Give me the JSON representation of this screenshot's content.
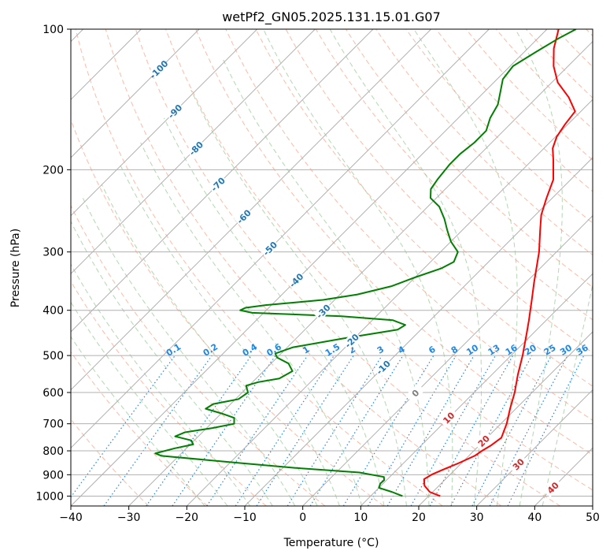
{
  "chart_data": {
    "type": "line",
    "title": "wetPf2_GN05.2025.131.15.01.G07",
    "xlabel": "Temperature (°C)",
    "ylabel": "Pressure (hPa)",
    "xlim": [
      -40,
      50
    ],
    "ylim": [
      1050,
      100
    ],
    "y_scale": "log",
    "skew": true,
    "x_ticks": [
      "−40",
      "−30",
      "−20",
      "−10",
      "0",
      "10",
      "20",
      "30",
      "40",
      "50"
    ],
    "y_ticks": [
      "100",
      "200",
      "300",
      "400",
      "500",
      "600",
      "700",
      "800",
      "900",
      "1000"
    ],
    "grid": true,
    "series": [
      {
        "color": "#ff0000",
        "points": [
          [
            1000,
            22.0
          ],
          [
            980,
            19.5
          ],
          [
            950,
            17.5
          ],
          [
            920,
            16.3
          ],
          [
            900,
            16.8
          ],
          [
            880,
            17.8
          ],
          [
            850,
            19.5
          ],
          [
            820,
            21.0
          ],
          [
            800,
            21.4
          ],
          [
            780,
            22.0
          ],
          [
            750,
            22.5
          ],
          [
            700,
            21.0
          ],
          [
            650,
            19.0
          ],
          [
            600,
            17.0
          ],
          [
            550,
            14.5
          ],
          [
            500,
            12.0
          ],
          [
            450,
            9.0
          ],
          [
            420,
            7.0
          ],
          [
            380,
            4.0
          ],
          [
            350,
            1.5
          ],
          [
            300,
            -3.0
          ],
          [
            270,
            -6.5
          ],
          [
            250,
            -9.0
          ],
          [
            230,
            -11.0
          ],
          [
            210,
            -13.0
          ],
          [
            190,
            -16.5
          ],
          [
            180,
            -18.5
          ],
          [
            170,
            -19.8
          ],
          [
            160,
            -20.5
          ],
          [
            150,
            -21.0
          ],
          [
            140,
            -24.5
          ],
          [
            130,
            -29.0
          ],
          [
            120,
            -32.5
          ],
          [
            110,
            -35.5
          ],
          [
            100,
            -38.0
          ]
        ]
      },
      {
        "color": "#008000",
        "points": [
          [
            1000,
            15.5
          ],
          [
            980,
            13.0
          ],
          [
            960,
            10.0
          ],
          [
            940,
            9.5
          ],
          [
            925,
            9.6
          ],
          [
            910,
            9.0
          ],
          [
            890,
            4.0
          ],
          [
            870,
            -8.0
          ],
          [
            850,
            -18.0
          ],
          [
            820,
            -33.0
          ],
          [
            810,
            -34.5
          ],
          [
            790,
            -32.0
          ],
          [
            775,
            -29.5
          ],
          [
            760,
            -30.5
          ],
          [
            745,
            -34.0
          ],
          [
            730,
            -33.0
          ],
          [
            715,
            -29.0
          ],
          [
            700,
            -26.0
          ],
          [
            680,
            -27.0
          ],
          [
            665,
            -30.0
          ],
          [
            650,
            -33.5
          ],
          [
            635,
            -33.0
          ],
          [
            620,
            -29.5
          ],
          [
            600,
            -29.0
          ],
          [
            580,
            -30.5
          ],
          [
            570,
            -29.0
          ],
          [
            560,
            -26.0
          ],
          [
            540,
            -25.0
          ],
          [
            520,
            -27.0
          ],
          [
            505,
            -30.0
          ],
          [
            495,
            -31.0
          ],
          [
            480,
            -29.0
          ],
          [
            460,
            -22.0
          ],
          [
            440,
            -14.0
          ],
          [
            430,
            -13.5
          ],
          [
            420,
            -16.5
          ],
          [
            412,
            -26.0
          ],
          [
            405,
            -42.0
          ],
          [
            400,
            -44.5
          ],
          [
            395,
            -44.0
          ],
          [
            390,
            -41.0
          ],
          [
            380,
            -32.0
          ],
          [
            370,
            -27.0
          ],
          [
            355,
            -22.5
          ],
          [
            340,
            -20.0
          ],
          [
            325,
            -17.0
          ],
          [
            315,
            -16.0
          ],
          [
            300,
            -17.0
          ],
          [
            285,
            -20.0
          ],
          [
            270,
            -22.5
          ],
          [
            255,
            -25.0
          ],
          [
            240,
            -28.0
          ],
          [
            230,
            -31.0
          ],
          [
            220,
            -32.5
          ],
          [
            210,
            -33.0
          ],
          [
            195,
            -33.5
          ],
          [
            185,
            -33.5
          ],
          [
            175,
            -33.0
          ],
          [
            165,
            -33.0
          ],
          [
            155,
            -34.5
          ],
          [
            145,
            -35.5
          ],
          [
            135,
            -37.5
          ],
          [
            128,
            -39.0
          ],
          [
            120,
            -39.5
          ],
          [
            112,
            -38.0
          ],
          [
            105,
            -36.5
          ],
          [
            100,
            -35.0
          ]
        ]
      }
    ],
    "isotherm_labels": [
      "-100",
      "-90",
      "-80",
      "-70",
      "-60",
      "-50",
      "-40",
      "-30",
      "-20",
      "-10",
      "0",
      "10",
      "20",
      "30",
      "40"
    ],
    "mixing_ratio_labels": [
      "0.1",
      "0.2",
      "0.4",
      "0.6",
      "1",
      "1.5",
      "2",
      "3",
      "4",
      "6",
      "8",
      "10",
      "13",
      "16",
      "20",
      "25",
      "30",
      "36"
    ],
    "colors": {
      "temperature": "#ff0000",
      "dewpoint": "#008000",
      "isotherm_cold_label": "#1f77b4",
      "isotherm_zero_label": "#7f7f7f",
      "isotherm_warm_label": "#d62728",
      "mixing_ratio": "#1e88e5",
      "dry_adiabat": "#ff8c69",
      "moist_adiabat": "#90c890",
      "grid": "#b0b0b0"
    }
  }
}
